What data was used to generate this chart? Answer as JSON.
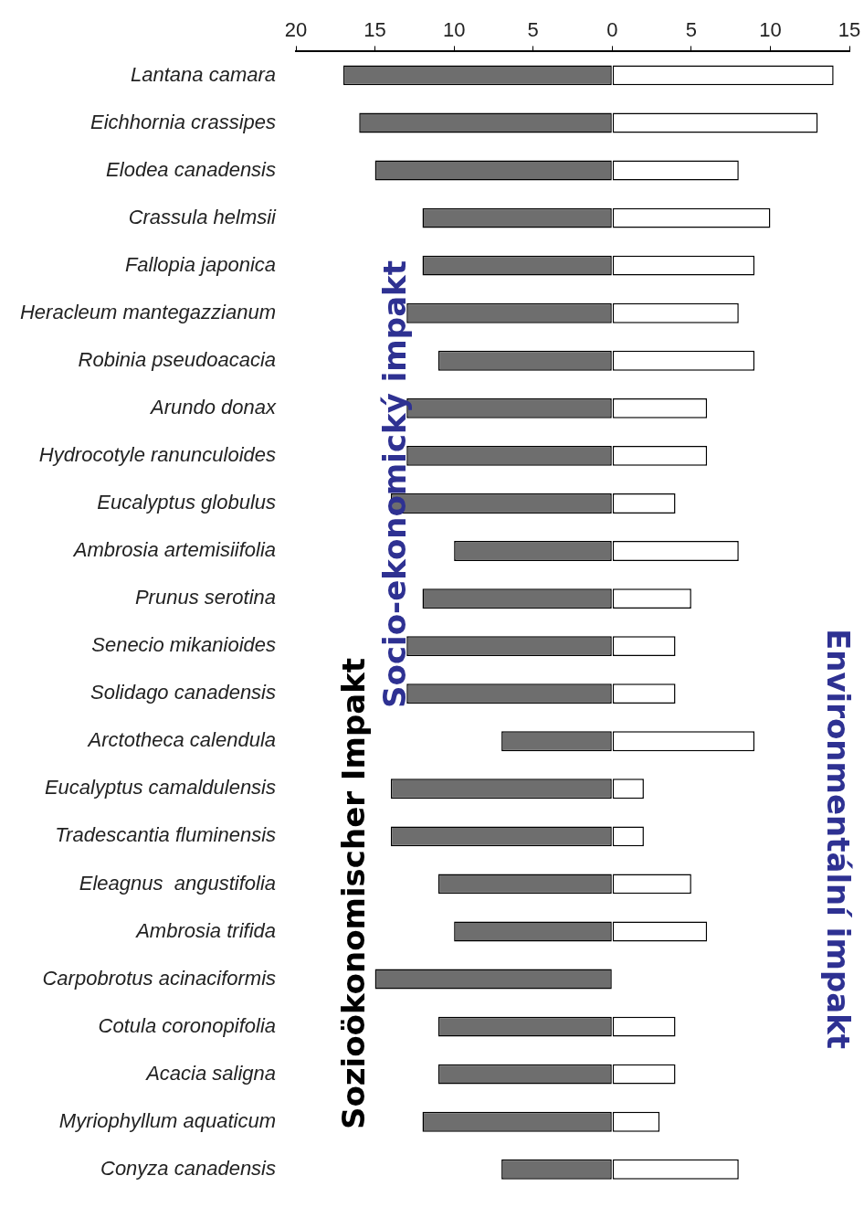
{
  "chart_data": {
    "type": "bar",
    "orientation": "horizontal",
    "stacked": true,
    "grid": false,
    "legend": false,
    "categories": [
      "Lantana camara",
      "Eichhornia crassipes",
      "Elodea canadensis",
      "Crassula helmsii",
      "Fallopia japonica",
      "Heracleum mantegazzianum",
      "Robinia pseudoacacia",
      "Arundo donax",
      "Hydrocotyle ranunculoides",
      "Eucalyptus globulus",
      "Ambrosia artemisiifolia",
      "Prunus serotina",
      "Senecio mikanioides",
      "Solidago canadensis",
      "Arctotheca calendula",
      "Eucalyptus camaldulensis",
      "Tradescantia fluminensis",
      "Eleagnus  angustifolia",
      "Ambrosia trifida",
      "Carpobrotus acinaciformis",
      "Cotula coronopifolia",
      "Acacia saligna",
      "Myriophyllum aquaticum",
      "Conyza canadensis"
    ],
    "series": [
      {
        "color": "#6e6e6e",
        "values": [
          -17,
          -16,
          -15,
          -12,
          -12,
          -13,
          -11,
          -13,
          -13,
          -14,
          -10,
          -12,
          -13,
          -13,
          -7,
          -14,
          -14,
          -11,
          -10,
          -15,
          -11,
          -11,
          -12,
          -7
        ]
      },
      {
        "color": "#ffffff",
        "values": [
          14,
          13,
          8,
          10,
          9,
          8,
          9,
          6,
          6,
          4,
          8,
          5,
          4,
          4,
          9,
          2,
          2,
          5,
          6,
          0,
          4,
          4,
          3,
          8
        ]
      }
    ],
    "xlim": [
      -20,
      15
    ],
    "xticks": [
      {
        "value": -20,
        "label": "20"
      },
      {
        "value": -15,
        "label": "15"
      },
      {
        "value": -10,
        "label": "10"
      },
      {
        "value": -5,
        "label": "5"
      },
      0,
      5,
      10,
      15
    ],
    "annotations": [
      "Socio-ekonomický impakt",
      "Sozioökonomischer Impakt",
      "Environmentální impakt"
    ]
  }
}
